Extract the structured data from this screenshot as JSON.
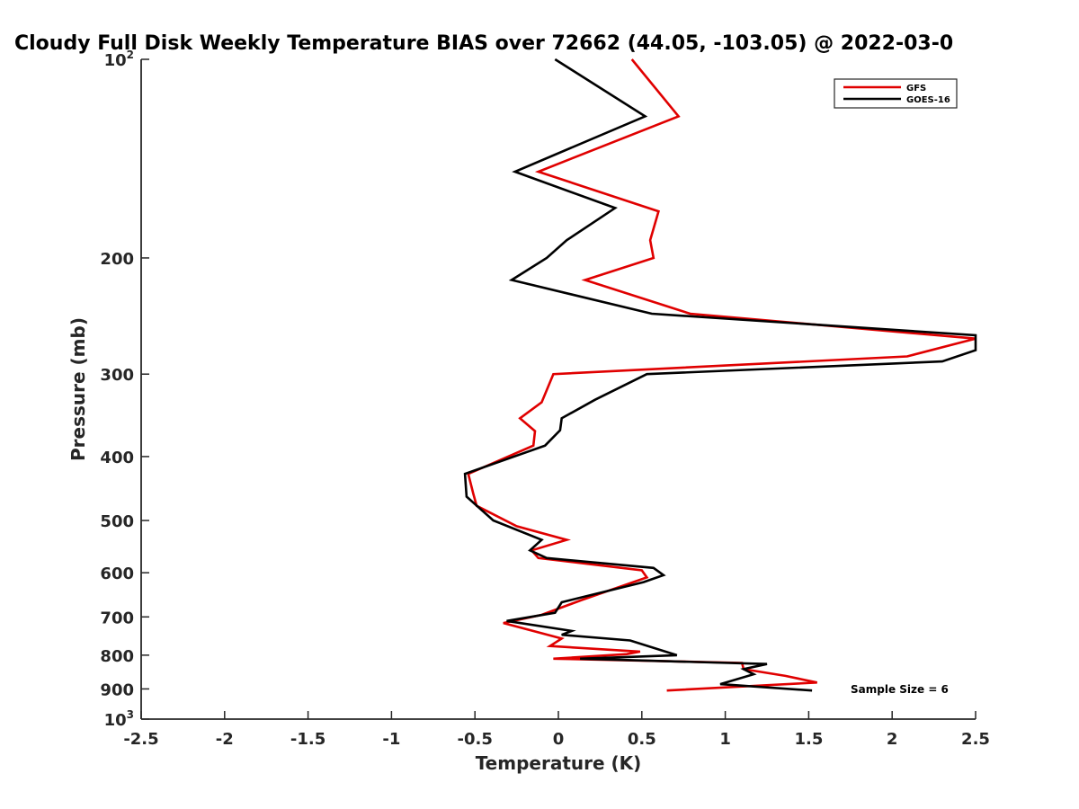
{
  "chart_data": {
    "type": "line",
    "title": "Cloudy Full Disk Weekly Temperature BIAS over 72662 (44.05, -103.05) @ 2022-03-0",
    "xlabel": "Temperature (K)",
    "ylabel": "Pressure (mb)",
    "xlim": [
      -2.5,
      2.5
    ],
    "ylim": [
      100,
      1000
    ],
    "y_scale": "log",
    "y_reversed": true,
    "grid": false,
    "x_ticks": [
      "-2.5",
      "-2",
      "-1.5",
      "-1",
      "-0.5",
      "0",
      "0.5",
      "1",
      "1.5",
      "2",
      "2.5"
    ],
    "y_ticks": [
      {
        "value": 100,
        "base": "10",
        "exp": "2"
      },
      {
        "value": 200,
        "label": "200"
      },
      {
        "value": 300,
        "label": "300"
      },
      {
        "value": 400,
        "label": "400"
      },
      {
        "value": 500,
        "label": "500"
      },
      {
        "value": 600,
        "label": "600"
      },
      {
        "value": 700,
        "label": "700"
      },
      {
        "value": 800,
        "label": "800"
      },
      {
        "value": 900,
        "label": "900"
      },
      {
        "value": 1000,
        "base": "10",
        "exp": "3"
      }
    ],
    "legend_position": "top-right",
    "annotation": "Sample Size = 6",
    "series": [
      {
        "name": "GFS",
        "color": "#e00000",
        "points": [
          [
            0.44,
            100
          ],
          [
            0.72,
            122
          ],
          [
            -0.12,
            148
          ],
          [
            0.6,
            170
          ],
          [
            0.55,
            188
          ],
          [
            0.57,
            200
          ],
          [
            0.16,
            216
          ],
          [
            0.79,
            243
          ],
          [
            2.5,
            265
          ],
          [
            2.09,
            282
          ],
          [
            -0.03,
            300
          ],
          [
            -0.1,
            331
          ],
          [
            -0.23,
            350
          ],
          [
            -0.14,
            366
          ],
          [
            -0.15,
            385
          ],
          [
            -0.54,
            425
          ],
          [
            -0.51,
            455
          ],
          [
            -0.49,
            475
          ],
          [
            -0.25,
            510
          ],
          [
            0.05,
            535
          ],
          [
            -0.16,
            555
          ],
          [
            -0.12,
            570
          ],
          [
            0.5,
            595
          ],
          [
            0.53,
            610
          ],
          [
            0.14,
            660
          ],
          [
            -0.1,
            695
          ],
          [
            -0.33,
            715
          ],
          [
            0.02,
            755
          ],
          [
            -0.05,
            775
          ],
          [
            0.49,
            790
          ],
          [
            0.41,
            797
          ],
          [
            -0.03,
            810
          ],
          [
            1.1,
            822
          ],
          [
            1.11,
            840
          ],
          [
            1.36,
            860
          ],
          [
            1.55,
            880
          ],
          [
            0.65,
            905
          ]
        ]
      },
      {
        "name": "GOES-16",
        "color": "#000000",
        "points": [
          [
            -0.02,
            100
          ],
          [
            0.52,
            122
          ],
          [
            -0.26,
            148
          ],
          [
            0.34,
            168
          ],
          [
            0.05,
            188
          ],
          [
            -0.07,
            200
          ],
          [
            -0.28,
            216
          ],
          [
            0.56,
            243
          ],
          [
            2.5,
            262
          ],
          [
            2.5,
            276
          ],
          [
            2.3,
            287
          ],
          [
            0.53,
            300
          ],
          [
            0.22,
            328
          ],
          [
            0.02,
            350
          ],
          [
            0.01,
            365
          ],
          [
            -0.08,
            385
          ],
          [
            -0.56,
            425
          ],
          [
            -0.55,
            460
          ],
          [
            -0.39,
            500
          ],
          [
            -0.1,
            535
          ],
          [
            -0.17,
            555
          ],
          [
            -0.07,
            570
          ],
          [
            0.57,
            590
          ],
          [
            0.63,
            605
          ],
          [
            0.51,
            620
          ],
          [
            0.02,
            665
          ],
          [
            -0.02,
            690
          ],
          [
            -0.31,
            710
          ],
          [
            0.08,
            735
          ],
          [
            0.02,
            745
          ],
          [
            0.43,
            760
          ],
          [
            0.71,
            800
          ],
          [
            0.13,
            810
          ],
          [
            1.25,
            825
          ],
          [
            1.11,
            840
          ],
          [
            1.17,
            855
          ],
          [
            0.97,
            885
          ],
          [
            1.52,
            905
          ]
        ]
      }
    ]
  }
}
